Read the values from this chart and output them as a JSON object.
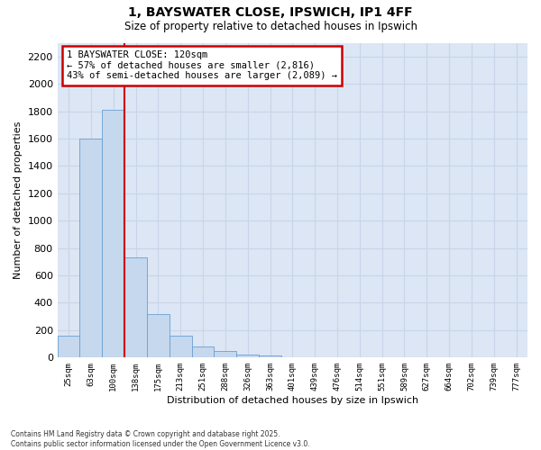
{
  "title_line1": "1, BAYSWATER CLOSE, IPSWICH, IP1 4FF",
  "title_line2": "Size of property relative to detached houses in Ipswich",
  "xlabel": "Distribution of detached houses by size in Ipswich",
  "ylabel": "Number of detached properties",
  "categories": [
    "25sqm",
    "63sqm",
    "100sqm",
    "138sqm",
    "175sqm",
    "213sqm",
    "251sqm",
    "288sqm",
    "326sqm",
    "363sqm",
    "401sqm",
    "439sqm",
    "476sqm",
    "514sqm",
    "551sqm",
    "589sqm",
    "627sqm",
    "664sqm",
    "702sqm",
    "739sqm",
    "777sqm"
  ],
  "values": [
    160,
    1600,
    1810,
    730,
    320,
    160,
    80,
    50,
    25,
    15,
    5,
    0,
    0,
    0,
    0,
    0,
    0,
    0,
    0,
    0,
    0
  ],
  "bar_color": "#c5d8ee",
  "bar_edge_color": "#6a9fd0",
  "vline_color": "#cc0000",
  "annotation_text": "1 BAYSWATER CLOSE: 120sqm\n← 57% of detached houses are smaller (2,816)\n43% of semi-detached houses are larger (2,089) →",
  "annotation_box_color": "#ffffff",
  "annotation_box_edge_color": "#cc0000",
  "ylim": [
    0,
    2300
  ],
  "yticks": [
    0,
    200,
    400,
    600,
    800,
    1000,
    1200,
    1400,
    1600,
    1800,
    2000,
    2200
  ],
  "grid_color": "#c8d4e8",
  "bg_color": "#dce6f5",
  "footer_line1": "Contains HM Land Registry data © Crown copyright and database right 2025.",
  "footer_line2": "Contains public sector information licensed under the Open Government Licence v3.0."
}
